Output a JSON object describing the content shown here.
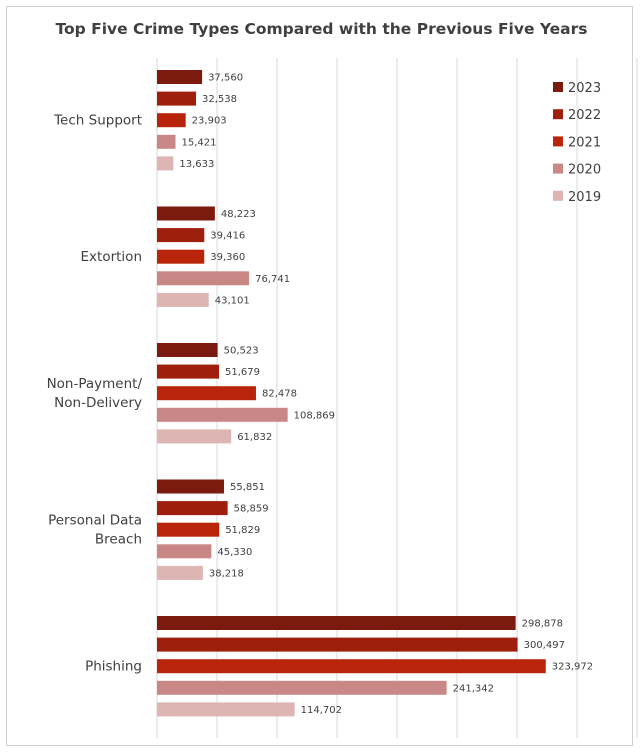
{
  "chart_data": {
    "type": "bar",
    "orientation": "horizontal",
    "title": "Top Five Crime Types Compared with the Previous Five Years",
    "categories": [
      "Tech Support",
      "Extortion",
      "Non-Payment/ Non-Delivery",
      "Personal Data Breach",
      "Phishing"
    ],
    "category_lines": [
      [
        "Tech Support"
      ],
      [
        "Extortion"
      ],
      [
        "Non-Payment/",
        "Non-Delivery"
      ],
      [
        "Personal Data",
        "Breach"
      ],
      [
        "Phishing"
      ]
    ],
    "series": [
      {
        "name": "2023",
        "color": "#7b1a0e",
        "values": [
          37560,
          48223,
          50523,
          55851,
          298878
        ],
        "labels": [
          "37,560",
          "48,223",
          "50,523",
          "55,851",
          "298,878"
        ]
      },
      {
        "name": "2022",
        "color": "#9e1f0c",
        "values": [
          32538,
          39416,
          51679,
          58859,
          300497
        ],
        "labels": [
          "32,538",
          "39,416",
          "51,679",
          "58,859",
          "300,497"
        ]
      },
      {
        "name": "2021",
        "color": "#b8250b",
        "values": [
          23903,
          39360,
          82478,
          51829,
          323972
        ],
        "labels": [
          "23,903",
          "39,360",
          "82,478",
          "51,829",
          "323,972"
        ]
      },
      {
        "name": "2020",
        "color": "#c98886",
        "values": [
          15421,
          76741,
          108869,
          45330,
          241342
        ],
        "labels": [
          "15,421",
          "76,741",
          "108,869",
          "45,330",
          "241,342"
        ]
      },
      {
        "name": "2019",
        "color": "#ddb5b3",
        "values": [
          13633,
          43101,
          61832,
          38218,
          114702
        ],
        "labels": [
          "13,633",
          "43,101",
          "61,832",
          "38,218",
          "114,702"
        ]
      }
    ],
    "xlim": [
      0,
      400000
    ],
    "grid": true,
    "legend": "top-right"
  }
}
